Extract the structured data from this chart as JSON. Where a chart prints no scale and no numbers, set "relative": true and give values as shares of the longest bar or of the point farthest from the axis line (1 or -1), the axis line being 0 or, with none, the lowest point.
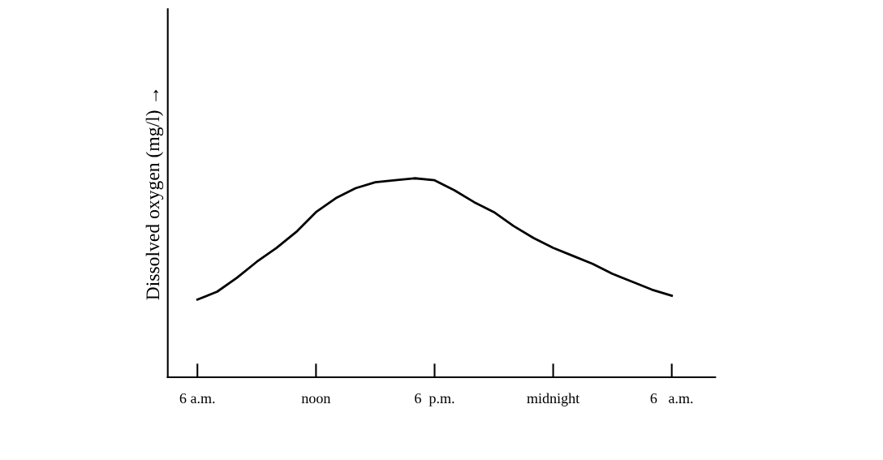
{
  "chart_data": {
    "type": "line",
    "relative": true,
    "ylabel": "Dissolved oxygen (mg/l) →",
    "categories": [
      "6 a.m.",
      null,
      null,
      null,
      null,
      null,
      "noon",
      null,
      null,
      null,
      null,
      null,
      "6  p.m.",
      null,
      null,
      null,
      null,
      null,
      "midnight",
      null,
      null,
      null,
      null,
      null,
      "6   a.m."
    ],
    "series": [
      {
        "color": "#000000",
        "values": [
          0.39,
          0.43,
          0.5,
          0.58,
          0.65,
          0.73,
          0.83,
          0.9,
          0.95,
          0.98,
          0.99,
          1,
          0.99,
          0.94,
          0.88,
          0.83,
          0.76,
          0.7,
          0.65,
          0.61,
          0.57,
          0.52,
          0.48,
          0.44,
          0.41
        ]
      }
    ],
    "grid": false,
    "line_style": "solid"
  }
}
